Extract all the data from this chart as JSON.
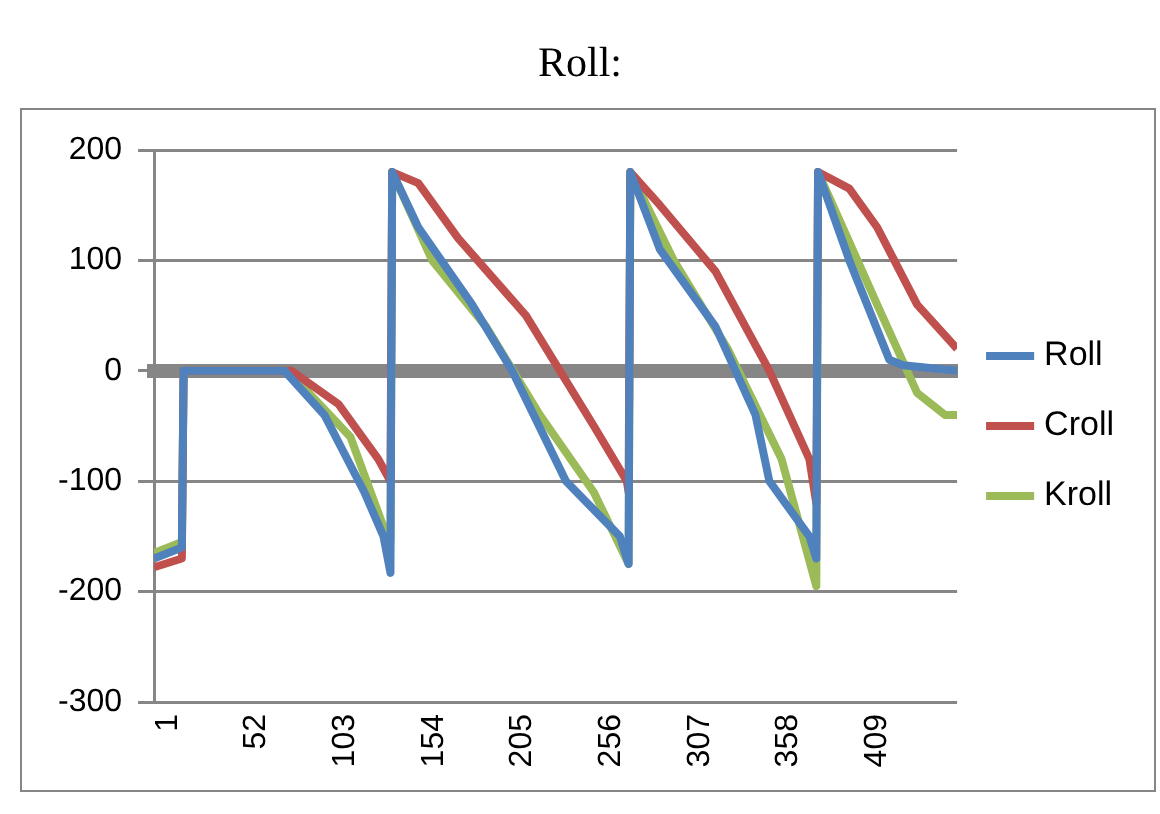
{
  "chart_data": {
    "type": "line",
    "title": "Roll:",
    "xlim": [
      -7,
      455
    ],
    "xticks": [
      1,
      52,
      103,
      154,
      205,
      256,
      307,
      358,
      409
    ],
    "ylim": [
      -300,
      200
    ],
    "yticks": [
      -300,
      -200,
      -100,
      0,
      100,
      200
    ],
    "grid": "y",
    "legend": "right",
    "marker": "none",
    "line_style": "solid",
    "series": [
      {
        "name": "Roll",
        "color": "#4f81bd",
        "x": [
          -7,
          9,
          10,
          68,
          91,
          114,
          125,
          129,
          130,
          145,
          176,
          199,
          230,
          261,
          266,
          267,
          284,
          316,
          339,
          347,
          370,
          374,
          375,
          393,
          416,
          424,
          455
        ],
        "values": [
          -170,
          -160,
          0,
          0,
          -40,
          -110,
          -150,
          -183,
          180,
          130,
          60,
          0,
          -100,
          -150,
          -175,
          180,
          110,
          40,
          -40,
          -100,
          -150,
          -170,
          180,
          100,
          10,
          5,
          0
        ]
      },
      {
        "name": "Croll",
        "color": "#c0504d",
        "x": [
          -7,
          9,
          10,
          72,
          99,
          122,
          129,
          130,
          145,
          168,
          207,
          246,
          265,
          266,
          267,
          284,
          316,
          347,
          370,
          374,
          375,
          393,
          409,
          432,
          455
        ],
        "values": [
          -178,
          -170,
          0,
          0,
          -30,
          -80,
          -100,
          180,
          170,
          120,
          50,
          -50,
          -100,
          -110,
          180,
          150,
          90,
          0,
          -80,
          -120,
          180,
          165,
          130,
          60,
          20
        ]
      },
      {
        "name": "Kroll",
        "color": "#9bbb59",
        "x": [
          -7,
          9,
          10,
          70,
          106,
          127,
          129,
          130,
          153,
          184,
          215,
          246,
          266,
          267,
          292,
          323,
          354,
          374,
          375,
          409,
          432,
          448,
          455
        ],
        "values": [
          -165,
          -155,
          0,
          0,
          -60,
          -150,
          -155,
          180,
          100,
          40,
          -40,
          -110,
          -175,
          180,
          100,
          20,
          -80,
          -195,
          180,
          60,
          -20,
          -40,
          -40
        ]
      }
    ]
  }
}
